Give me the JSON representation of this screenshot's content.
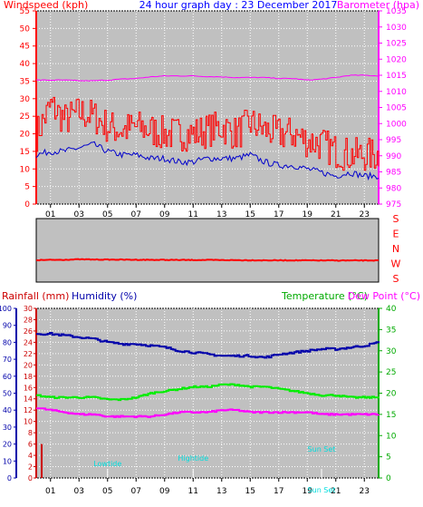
{
  "colors": {
    "wind_axis": "#ff0000",
    "baro_axis": "#ff00ff",
    "title": "#0000ff",
    "plot_bg": "#c0c0c0",
    "wind_speed": "#ff0000",
    "wind_avg": "#0000cc",
    "barometer": "#ff00ff",
    "wind_dir": "#ff0000",
    "rainfall": "#cc0000",
    "humidity": "#0000aa",
    "temperature": "#00ee00",
    "dew_point": "#ff00ff",
    "temp_axis": "#00aa00",
    "sun_label": "#00dddd"
  },
  "chart_data": [
    {
      "type": "line",
      "title": "24 hour graph day : 23 December 2017",
      "y_left_label": "Windspeed (kph)",
      "y_right_label": "Barometer (hpa)",
      "x_ticks": [
        "01",
        "03",
        "05",
        "07",
        "09",
        "11",
        "13",
        "15",
        "17",
        "19",
        "21",
        "23"
      ],
      "y_left_ticks": [
        0,
        5,
        10,
        15,
        20,
        25,
        30,
        35,
        40,
        45,
        50,
        55
      ],
      "y_left_range": [
        0,
        55
      ],
      "y_right_ticks": [
        975,
        980,
        985,
        990,
        995,
        1000,
        1005,
        1010,
        1015,
        1020,
        1025,
        1030,
        1035
      ],
      "y_right_range": [
        975,
        1035
      ],
      "x_range": [
        0,
        24
      ],
      "grid": true,
      "series": [
        {
          "axis": "left",
          "x": [
            0,
            1,
            2,
            3,
            4,
            5,
            6,
            7,
            8,
            9,
            10,
            11,
            12,
            13,
            14,
            15,
            16,
            17,
            18,
            19,
            20,
            21,
            22,
            23,
            24
          ],
          "values": [
            20,
            28,
            24,
            26,
            25,
            22,
            21,
            22,
            21,
            20,
            20,
            20,
            21,
            22,
            20,
            23,
            21,
            20,
            20,
            18,
            17,
            15,
            14,
            14,
            14
          ]
        },
        {
          "axis": "left",
          "x": [
            0,
            1,
            2,
            3,
            4,
            5,
            6,
            7,
            8,
            9,
            10,
            11,
            12,
            13,
            14,
            15,
            16,
            17,
            18,
            19,
            20,
            21,
            22,
            23,
            24
          ],
          "values": [
            14,
            15,
            15,
            16,
            17,
            15,
            14,
            14,
            13,
            13,
            12,
            12,
            13,
            13,
            13,
            14,
            12,
            11,
            11,
            10,
            9,
            8,
            9,
            8,
            8
          ]
        },
        {
          "axis": "right",
          "x": [
            0,
            1,
            2,
            3,
            4,
            5,
            6,
            7,
            8,
            9,
            10,
            11,
            12,
            13,
            14,
            15,
            16,
            17,
            18,
            19,
            20,
            21,
            22,
            23,
            24
          ],
          "values": [
            1013.5,
            1013.5,
            1013.5,
            1013.3,
            1013.3,
            1013.5,
            1013.8,
            1014.0,
            1014.5,
            1014.8,
            1014.8,
            1014.8,
            1014.6,
            1014.5,
            1014.3,
            1014.3,
            1014.3,
            1014.0,
            1014.0,
            1013.5,
            1013.8,
            1014.3,
            1015.0,
            1015.0,
            1014.8
          ]
        }
      ]
    },
    {
      "type": "line",
      "y_labels": [
        "S",
        "E",
        "N",
        "W",
        "S"
      ],
      "y_range": [
        0,
        360
      ],
      "x_range": [
        0,
        24
      ],
      "grid": false,
      "series": [
        {
          "x": [
            0,
            2,
            3,
            4,
            6,
            8,
            10,
            12,
            14,
            16,
            18,
            20,
            21,
            22,
            24
          ],
          "values": [
            241,
            238,
            236,
            237,
            238,
            239,
            240,
            240,
            241,
            242,
            242,
            243,
            243,
            243,
            243
          ]
        }
      ]
    },
    {
      "type": "line",
      "y_left_outer_label": "Rainfall (mm)",
      "y_left_inner_label": "Humidity (%)",
      "y_right_label": "Temperature (°C)",
      "y_right2_label": "Dew Point (°C)",
      "x_ticks": [
        "01",
        "03",
        "05",
        "07",
        "09",
        "11",
        "13",
        "15",
        "17",
        "19",
        "21",
        "23"
      ],
      "y_humidity_ticks": [
        0,
        10,
        20,
        30,
        40,
        50,
        60,
        70,
        80,
        90,
        100
      ],
      "y_humidity_range": [
        0,
        100
      ],
      "y_rain_ticks": [
        0,
        2,
        4,
        6,
        8,
        10,
        12,
        14,
        16,
        18,
        20,
        22,
        24,
        26,
        28,
        30
      ],
      "y_rain_range": [
        0,
        30
      ],
      "y_temp_ticks": [
        0,
        5,
        10,
        15,
        20,
        25,
        30,
        35,
        40
      ],
      "y_temp_range": [
        0,
        40
      ],
      "x_range": [
        0,
        24
      ],
      "grid": true,
      "sun_labels": [
        {
          "label": "Lowtide",
          "x": 5.0
        },
        {
          "label": "Hightide",
          "x": 11.0
        },
        {
          "label": "Sun Set",
          "x": 20.0
        },
        {
          "label": "Sun Set",
          "x": 20.0
        }
      ],
      "series": [
        {
          "axis": "rain",
          "x": [
            0,
            24
          ],
          "values": [
            6,
            6
          ]
        },
        {
          "axis": "humidity",
          "x": [
            0,
            1,
            2,
            3,
            4,
            5,
            6,
            7,
            8,
            9,
            10,
            11,
            12,
            13,
            14,
            15,
            16,
            17,
            18,
            19,
            20,
            21,
            22,
            23,
            24
          ],
          "values": [
            85,
            85,
            84,
            83,
            82,
            80,
            79,
            79,
            78,
            77,
            75,
            74,
            73,
            72,
            72,
            72,
            71,
            73,
            74,
            75,
            76,
            76,
            77,
            78,
            80
          ]
        },
        {
          "axis": "temp",
          "x": [
            0,
            1,
            2,
            3,
            4,
            5,
            6,
            7,
            8,
            9,
            10,
            11,
            12,
            13,
            14,
            15,
            16,
            17,
            18,
            19,
            20,
            21,
            22,
            23,
            24
          ],
          "values": [
            19.5,
            19.0,
            19.0,
            19.0,
            19.0,
            18.5,
            18.5,
            19.0,
            20.0,
            20.5,
            21.0,
            21.5,
            21.5,
            22.0,
            22.0,
            21.5,
            21.5,
            21.0,
            20.5,
            20.0,
            19.5,
            19.5,
            19.0,
            19.0,
            19.0
          ]
        },
        {
          "axis": "temp",
          "x": [
            0,
            1,
            2,
            3,
            4,
            5,
            6,
            7,
            8,
            9,
            10,
            11,
            12,
            13,
            14,
            15,
            16,
            17,
            18,
            19,
            20,
            21,
            22,
            23,
            24
          ],
          "values": [
            16.5,
            16.0,
            15.5,
            15.0,
            15.0,
            14.5,
            14.5,
            14.5,
            14.5,
            15.0,
            15.5,
            15.5,
            15.5,
            16.0,
            16.0,
            15.5,
            15.5,
            15.5,
            15.5,
            15.5,
            15.0,
            15.0,
            15.0,
            15.0,
            15.0
          ]
        }
      ]
    }
  ]
}
